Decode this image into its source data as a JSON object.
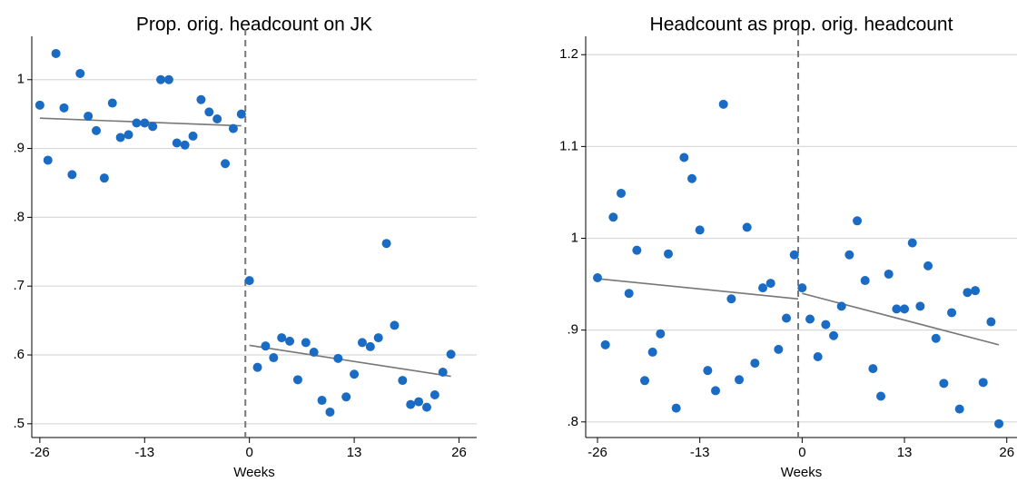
{
  "chart_data": [
    {
      "type": "scatter",
      "title": "Prop. orig. headcount on JK",
      "x_label": "Weeks",
      "xlim": [
        -27,
        28.2
      ],
      "xticks": [
        -26,
        -13,
        0,
        13,
        26
      ],
      "ylim": [
        0.48,
        1.063
      ],
      "yticks": [
        {
          "value": 0.5,
          "label": ".5"
        },
        {
          "value": 0.6,
          "label": ".6"
        },
        {
          "value": 0.7,
          "label": ".7"
        },
        {
          "value": 0.8,
          "label": ".8"
        },
        {
          "value": 0.9,
          "label": ".9"
        },
        1
      ],
      "grid": true,
      "vline": -0.5,
      "series": [
        {
          "color": "#1a6bc4",
          "x": [
            -26,
            -25,
            -24,
            -23,
            -22,
            -21,
            -20,
            -19,
            -18,
            -17,
            -16,
            -15,
            -14,
            -13,
            -12,
            -11,
            -10,
            -9,
            -8,
            -7,
            -6,
            -5,
            -4,
            -3,
            -2,
            -1,
            0,
            1,
            2,
            3,
            4,
            5,
            6,
            7,
            8,
            9,
            10,
            11,
            12,
            13,
            14,
            15,
            16,
            17,
            18,
            19,
            20,
            21,
            22,
            23,
            24,
            25
          ],
          "values": [
            0.963,
            0.883,
            1.038,
            0.959,
            0.862,
            1.009,
            0.947,
            0.926,
            0.857,
            0.966,
            0.916,
            0.92,
            0.937,
            0.937,
            0.932,
            1.0,
            1.0,
            0.908,
            0.905,
            0.918,
            0.971,
            0.953,
            0.943,
            0.878,
            0.929,
            0.95,
            0.708,
            0.582,
            0.613,
            0.596,
            0.625,
            0.62,
            0.564,
            0.618,
            0.604,
            0.534,
            0.517,
            0.595,
            0.539,
            0.572,
            0.618,
            0.612,
            0.625,
            0.762,
            0.643,
            0.563,
            0.528,
            0.532,
            0.524,
            0.542,
            0.575,
            0.601
          ]
        }
      ],
      "fit_lines": [
        {
          "color": "#777777",
          "x": [
            -26,
            -1
          ],
          "values": [
            0.944,
            0.933
          ]
        },
        {
          "color": "#777777",
          "x": [
            0,
            25
          ],
          "values": [
            0.614,
            0.569
          ]
        }
      ]
    },
    {
      "type": "scatter",
      "title": "Headcount as prop. orig. headcount",
      "x_label": "Weeks",
      "xlim": [
        -27.5,
        27.3
      ],
      "xticks": [
        -26,
        -13,
        0,
        13,
        26
      ],
      "ylim": [
        0.783,
        1.22
      ],
      "yticks": [
        {
          "value": 0.8,
          "label": ".8"
        },
        {
          "value": 0.9,
          "label": ".9"
        },
        1,
        1.1,
        1.2
      ],
      "grid": true,
      "vline": -0.5,
      "series": [
        {
          "color": "#1a6bc4",
          "x": [
            -26,
            -25,
            -24,
            -23,
            -22,
            -21,
            -20,
            -19,
            -18,
            -17,
            -16,
            -15,
            -14,
            -13,
            -12,
            -11,
            -10,
            -9,
            -8,
            -7,
            -6,
            -5,
            -4,
            -3,
            -2,
            -1,
            0,
            1,
            2,
            3,
            4,
            5,
            6,
            7,
            8,
            9,
            10,
            11,
            12,
            13,
            14,
            15,
            16,
            17,
            18,
            19,
            20,
            21,
            22,
            23,
            24,
            25
          ],
          "values": [
            0.957,
            0.884,
            1.023,
            1.049,
            0.94,
            0.987,
            0.845,
            0.876,
            0.896,
            0.983,
            0.815,
            1.088,
            1.065,
            1.009,
            0.856,
            0.834,
            1.146,
            0.934,
            0.846,
            1.012,
            0.864,
            0.946,
            0.951,
            0.879,
            0.913,
            0.982,
            0.946,
            0.912,
            0.871,
            0.906,
            0.894,
            0.926,
            0.982,
            1.019,
            0.954,
            0.858,
            0.828,
            0.961,
            0.923,
            0.923,
            0.995,
            0.926,
            0.97,
            0.891,
            0.842,
            0.919,
            0.814,
            0.941,
            0.943,
            0.843,
            0.909,
            0.798
          ]
        }
      ],
      "fit_lines": [
        {
          "color": "#777777",
          "x": [
            -26,
            -0.5
          ],
          "values": [
            0.956,
            0.934
          ]
        },
        {
          "color": "#777777",
          "x": [
            0,
            25
          ],
          "values": [
            0.94,
            0.884
          ]
        }
      ]
    }
  ]
}
